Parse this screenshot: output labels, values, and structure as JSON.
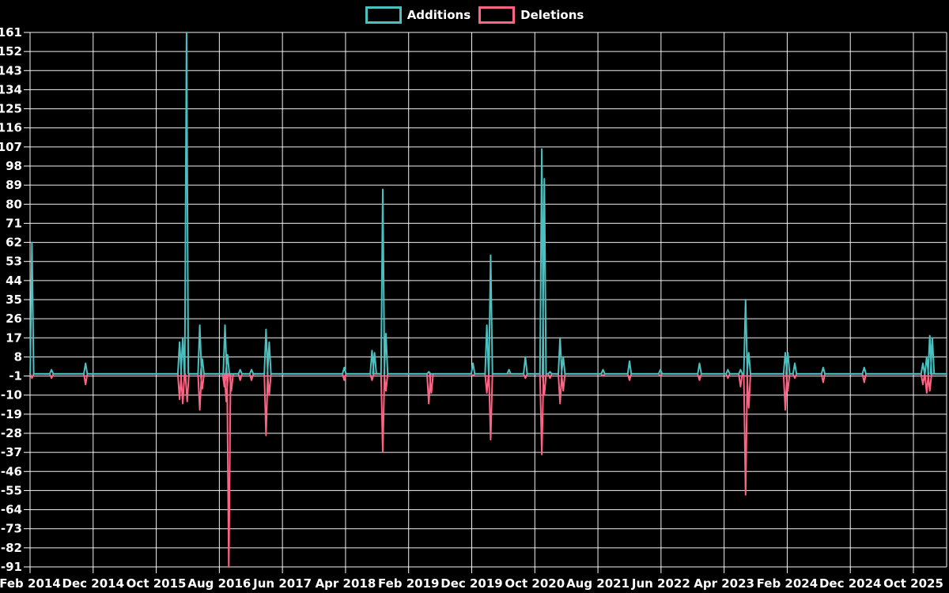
{
  "legend": {
    "items": [
      {
        "label": "Additions",
        "color": "#4bc0c0"
      },
      {
        "label": "Deletions",
        "color": "#ff6384"
      }
    ]
  },
  "chart_data": {
    "type": "line",
    "title": "",
    "legend_position": "top-center",
    "background_color": "#000000",
    "grid": {
      "show": true,
      "color": "#ffffff"
    },
    "text_color": "#ffffff",
    "y_axis": {
      "min": -91,
      "max": 161,
      "tick_step": 9,
      "tick_labels": [
        "161",
        "152",
        "143",
        "134",
        "125",
        "116",
        "107",
        "98",
        "89",
        "80",
        "71",
        "62",
        "53",
        "44",
        "35",
        "26",
        "17",
        "8",
        "-1",
        "-10",
        "-19",
        "-28",
        "-37",
        "-46",
        "-55",
        "-64",
        "-73",
        "-82",
        "-91"
      ]
    },
    "x_axis": {
      "labels": [
        "Feb 2014",
        "Dec 2014",
        "Oct 2015",
        "Aug 2016",
        "Jun 2017",
        "Apr 2018",
        "Feb 2019",
        "Dec 2019",
        "Oct 2020",
        "Aug 2021",
        "Jun 2022",
        "Apr 2023",
        "Feb 2024",
        "Dec 2024",
        "Oct 2025"
      ],
      "months_per_label": 10,
      "x_unit": "months since Feb 2014"
    },
    "series": [
      {
        "name": "Additions",
        "color": "#4bc0c0",
        "baseline": 0,
        "events": [
          [
            0.3,
            62
          ],
          [
            3.4,
            2
          ],
          [
            8.8,
            5
          ],
          [
            23.7,
            15
          ],
          [
            24.2,
            17
          ],
          [
            24.8,
            161
          ],
          [
            26.9,
            23
          ],
          [
            27.3,
            7
          ],
          [
            30.9,
            23
          ],
          [
            31.3,
            9
          ],
          [
            33.3,
            2
          ],
          [
            35.1,
            2
          ],
          [
            37.4,
            21
          ],
          [
            37.9,
            15
          ],
          [
            49.8,
            3
          ],
          [
            54.2,
            11
          ],
          [
            54.6,
            10
          ],
          [
            55.9,
            87
          ],
          [
            56.4,
            19
          ],
          [
            63.2,
            1
          ],
          [
            70.2,
            5
          ],
          [
            72.4,
            23
          ],
          [
            73.0,
            56
          ],
          [
            75.9,
            2
          ],
          [
            78.5,
            8
          ],
          [
            81.1,
            106
          ],
          [
            81.5,
            92
          ],
          [
            82.4,
            1
          ],
          [
            84.0,
            17
          ],
          [
            84.5,
            8
          ],
          [
            90.8,
            2
          ],
          [
            95.0,
            6
          ],
          [
            99.9,
            2
          ],
          [
            106.1,
            5
          ],
          [
            110.6,
            2
          ],
          [
            112.6,
            2
          ],
          [
            113.4,
            35
          ],
          [
            113.9,
            10
          ],
          [
            119.7,
            10
          ],
          [
            120.1,
            10
          ],
          [
            121.2,
            5
          ],
          [
            125.7,
            3
          ],
          [
            132.2,
            3
          ],
          [
            141.5,
            5
          ],
          [
            142.1,
            8
          ],
          [
            142.6,
            18
          ],
          [
            143.0,
            17
          ]
        ]
      },
      {
        "name": "Deletions",
        "color": "#ff6384",
        "baseline": 0,
        "events": [
          [
            0.3,
            -2
          ],
          [
            3.4,
            -2
          ],
          [
            8.8,
            -5
          ],
          [
            23.7,
            -12
          ],
          [
            24.2,
            -14
          ],
          [
            24.9,
            -13
          ],
          [
            26.9,
            -17
          ],
          [
            27.3,
            -7
          ],
          [
            30.8,
            -6
          ],
          [
            31.1,
            -13
          ],
          [
            31.5,
            -91
          ],
          [
            31.9,
            -8
          ],
          [
            33.3,
            -3
          ],
          [
            35.1,
            -3
          ],
          [
            37.4,
            -29
          ],
          [
            37.9,
            -10
          ],
          [
            49.8,
            -3
          ],
          [
            54.2,
            -3
          ],
          [
            55.9,
            -37
          ],
          [
            56.4,
            -8
          ],
          [
            63.2,
            -14
          ],
          [
            63.6,
            -9
          ],
          [
            70.2,
            -1
          ],
          [
            72.4,
            -9
          ],
          [
            73.0,
            -31
          ],
          [
            78.5,
            -2
          ],
          [
            81.1,
            -38
          ],
          [
            81.5,
            -10
          ],
          [
            82.4,
            -2
          ],
          [
            84.0,
            -14
          ],
          [
            84.5,
            -8
          ],
          [
            90.8,
            -1
          ],
          [
            95.0,
            -3
          ],
          [
            99.9,
            -1
          ],
          [
            106.1,
            -3
          ],
          [
            110.6,
            -2
          ],
          [
            112.6,
            -6
          ],
          [
            113.4,
            -57
          ],
          [
            113.9,
            -16
          ],
          [
            119.7,
            -17
          ],
          [
            120.1,
            -8
          ],
          [
            121.2,
            -2
          ],
          [
            125.7,
            -4
          ],
          [
            132.2,
            -4
          ],
          [
            141.5,
            -5
          ],
          [
            142.1,
            -9
          ],
          [
            142.6,
            -8
          ]
        ]
      }
    ]
  }
}
